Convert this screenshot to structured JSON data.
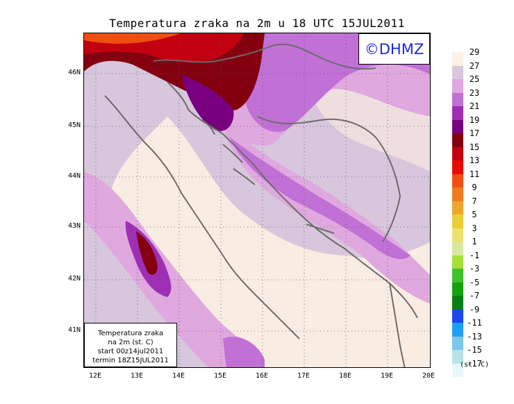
{
  "title": "Temperatura zraka na 2m u 18 UTC 15JUL2011",
  "logo": "©DHMZ",
  "info": {
    "line1": "Temperatura zraka",
    "line2": "na 2m (st. C)",
    "line3": "start 00z14jul2011",
    "line4": "termin 18Z15JUL2011"
  },
  "lat_labels": [
    "46N",
    "45N",
    "44N",
    "43N",
    "42N",
    "41N"
  ],
  "lon_labels": [
    "12E",
    "13E",
    "14E",
    "15E",
    "16E",
    "17E",
    "18E",
    "19E",
    "20E"
  ],
  "legend": {
    "units": "(st. C)",
    "labels": [
      "29",
      "27",
      "25",
      "23",
      "21",
      "19",
      "17",
      "15",
      "13",
      "11",
      "9",
      "7",
      "5",
      "3",
      "1",
      "-1",
      "-3",
      "-5",
      "-7",
      "-9",
      "-11",
      "-13",
      "-15",
      "-17"
    ],
    "colors": [
      "#fdf0e4",
      "#d9c8dc",
      "#dfa8df",
      "#c170d6",
      "#9e2fb5",
      "#780080",
      "#840010",
      "#c30010",
      "#e80b00",
      "#ef4f12",
      "#f07a1e",
      "#efa52c",
      "#ecce3a",
      "#ece16c",
      "#d9e89f",
      "#a4df3a",
      "#3ec12c",
      "#12a30e",
      "#0a7f16",
      "#1b48f0",
      "#1e9ff3",
      "#7dc7ee",
      "#b7e2e8",
      "#e8f7f9"
    ]
  }
}
